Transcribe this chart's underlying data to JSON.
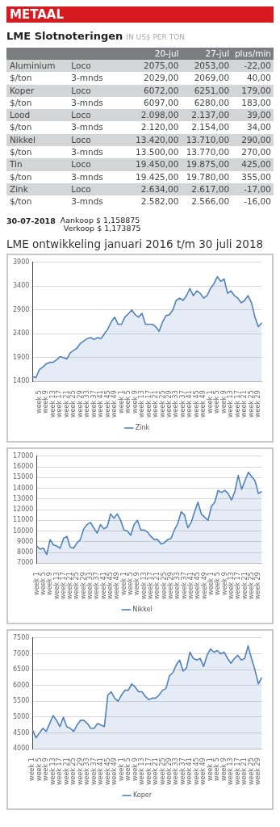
{
  "chart_data": [
    {
      "type": "other",
      "title": "METAAL",
      "subtitle": "LME Slotnoteringen",
      "annotations": [
        "IN US$ PER TON",
        "20-jul",
        "27-jul",
        "plus/min",
        "Aluminium",
        "Loco",
        "2075,00",
        "2053,00",
        "-22,00",
        "$/ton",
        "3-mnds",
        "2029,00",
        "2069,00",
        "40,00",
        "Koper",
        "Loco",
        "6072,00",
        "6251,00",
        "179,00",
        "$/ton",
        "3-mnds",
        "6097,00",
        "6280,00",
        "183,00",
        "Lood",
        "Loco",
        "2.098,00",
        "2.137,00",
        "39,00",
        "$/ton",
        "3-mnds",
        "2.120,00",
        "2.154,00",
        "34,00",
        "Nikkel",
        "Loco",
        "13.420,00",
        "13.710,00",
        "290,00",
        "$/ton",
        "3-mnds",
        "13.500,00",
        "13.770,00",
        "270,00",
        "Tin",
        "Loco",
        "19.450,00",
        "19.875,00",
        "425,00",
        "$/ton",
        "3-mnds",
        "19.425,00",
        "19.780,00",
        "355,00",
        "Zink",
        "Loco",
        "2.634,00",
        "2.617,00",
        "-17,00",
        "$/ton",
        "3-mnds",
        "2.582,00",
        "2.566,00",
        "-16,00",
        "30-07-2018",
        "Aankoop $ 1,158875",
        "Verkoop $ 1,173875"
      ]
    },
    {
      "type": "area",
      "title": "LME ontwikkeling januari 2016 t/m 30 juli 2018",
      "legend": "bottom",
      "grid": "y",
      "ylim": [
        1400,
        3900
      ],
      "yticks": [
        1400,
        1900,
        2400,
        2900,
        3400,
        3900
      ],
      "categories": [
        null,
        null,
        "week 5",
        null,
        "week 9",
        null,
        "week 13",
        null,
        "week 17",
        null,
        "week 21",
        null,
        "week 25",
        null,
        "week 29",
        null,
        "week 33",
        null,
        "week 37",
        null,
        "week 41",
        null,
        "week 45",
        null,
        "week 49",
        null,
        "week 1",
        null,
        "week 5",
        null,
        "week 9",
        null,
        "week 13",
        null,
        "week 17",
        null,
        "week 21",
        null,
        "week 25",
        null,
        "week 29",
        null,
        "week 33",
        null,
        "week 37",
        null,
        "week 41",
        null,
        "week 45",
        null,
        "week 49",
        null,
        "week 1",
        null,
        "week 5",
        null,
        "week 9",
        null,
        "week 13",
        null,
        "week 17",
        null,
        "week 21",
        null,
        "week 25",
        null,
        "week 29",
        null
      ],
      "series": [
        {
          "name": "Zink",
          "color": "#4f81bd",
          "values": [
            1500,
            1480,
            1650,
            1700,
            1770,
            1800,
            1800,
            1850,
            1920,
            1900,
            1870,
            2000,
            2050,
            2100,
            2200,
            2250,
            2300,
            2320,
            2280,
            2320,
            2300,
            2400,
            2500,
            2650,
            2750,
            2600,
            2600,
            2750,
            2820,
            2900,
            2800,
            2750,
            2830,
            2600,
            2600,
            2600,
            2550,
            2450,
            2650,
            2780,
            2800,
            2900,
            3100,
            3150,
            3100,
            3200,
            3350,
            3200,
            3300,
            3250,
            3150,
            3200,
            3350,
            3450,
            3600,
            3500,
            3550,
            3250,
            3300,
            3200,
            3150,
            3050,
            3100,
            3200,
            3050,
            2750,
            2550,
            2630
          ]
        }
      ]
    },
    {
      "type": "area",
      "legend": "bottom",
      "grid": "y",
      "ylim": [
        7000,
        17000
      ],
      "yticks": [
        7000,
        8000,
        9000,
        10000,
        11000,
        12000,
        13000,
        14000,
        15000,
        16000,
        17000
      ],
      "categories": [
        "week 1",
        null,
        "week 5",
        null,
        "week 9",
        null,
        "week 13",
        null,
        "week 17",
        null,
        "week 21",
        null,
        "week 25",
        null,
        "week 29",
        null,
        "week 33",
        null,
        "week 37",
        null,
        "week 41",
        null,
        "week 45",
        null,
        "week 49",
        null,
        "week 1",
        null,
        "week 5",
        null,
        "week 9",
        null,
        "week 13",
        null,
        "week 17",
        null,
        "week 21",
        null,
        "week 25",
        null,
        "week 29",
        null,
        "week 33",
        null,
        "week 37",
        null,
        "week 41",
        null,
        "week 45",
        null,
        "week 49",
        null,
        "week 1",
        null,
        "week 5",
        null,
        "week 9",
        null,
        "week 13",
        null,
        "week 17",
        null,
        "week 21",
        null,
        "week 25",
        null,
        "week 29",
        null
      ],
      "series": [
        {
          "name": "Nikkel",
          "color": "#4f81bd",
          "values": [
            8600,
            8300,
            8400,
            7800,
            9200,
            8700,
            8600,
            8400,
            9300,
            9500,
            8500,
            8400,
            8900,
            9200,
            10200,
            10600,
            10800,
            10300,
            9800,
            10600,
            10200,
            10400,
            11600,
            11200,
            11600,
            11000,
            10100,
            10000,
            9600,
            10600,
            11000,
            10100,
            10100,
            9900,
            9500,
            9200,
            9200,
            8800,
            8900,
            9200,
            9300,
            10100,
            10700,
            11800,
            11500,
            10300,
            10800,
            11800,
            12700,
            11600,
            11300,
            11000,
            12300,
            12700,
            13800,
            13600,
            13800,
            13500,
            12900,
            13700,
            15200,
            13900,
            14700,
            15500,
            15100,
            14700,
            13500,
            13700
          ]
        }
      ]
    },
    {
      "type": "area",
      "legend": "bottom",
      "grid": "y",
      "ylim": [
        4000,
        7500
      ],
      "yticks": [
        4000,
        4500,
        5000,
        5500,
        6000,
        6500,
        7000,
        7500
      ],
      "categories": [
        "week 1",
        null,
        "week 5",
        null,
        "week 9",
        null,
        "week 13",
        null,
        "week 17",
        null,
        "week 21",
        null,
        "week 25",
        null,
        "week 29",
        null,
        "week 33",
        null,
        "week 37",
        null,
        "week 41",
        null,
        "week 45",
        null,
        "week 49",
        null,
        "week 1",
        null,
        "week 5",
        null,
        "week 9",
        null,
        "week 13",
        null,
        "week 17",
        null,
        "week 21",
        null,
        "week 25",
        null,
        "week 29",
        null,
        "week 33",
        null,
        "week 37",
        null,
        "week 41",
        null,
        "week 45",
        null,
        "week 49",
        null,
        "week 1",
        null,
        "week 5",
        null,
        "week 9",
        null,
        "week 13",
        null,
        "week 17",
        null,
        "week 21",
        null,
        "week 25",
        null,
        "week 29",
        null
      ],
      "series": [
        {
          "name": "Koper",
          "color": "#4f81bd",
          "values": [
            4600,
            4350,
            4500,
            4650,
            4550,
            4800,
            5050,
            4900,
            4700,
            5000,
            4700,
            4650,
            4550,
            4750,
            4900,
            4900,
            4800,
            4650,
            4650,
            4800,
            4750,
            4700,
            5700,
            5800,
            5600,
            5500,
            5700,
            5850,
            5850,
            6050,
            5950,
            5800,
            5800,
            5650,
            5550,
            5600,
            5600,
            5700,
            5850,
            5900,
            6300,
            6400,
            6650,
            6800,
            6450,
            6550,
            7050,
            6850,
            6800,
            6850,
            6600,
            6950,
            7150,
            7050,
            7100,
            7000,
            7050,
            6850,
            6700,
            6850,
            6950,
            6800,
            6850,
            7250,
            6850,
            6500,
            6050,
            6250
          ]
        }
      ]
    }
  ]
}
